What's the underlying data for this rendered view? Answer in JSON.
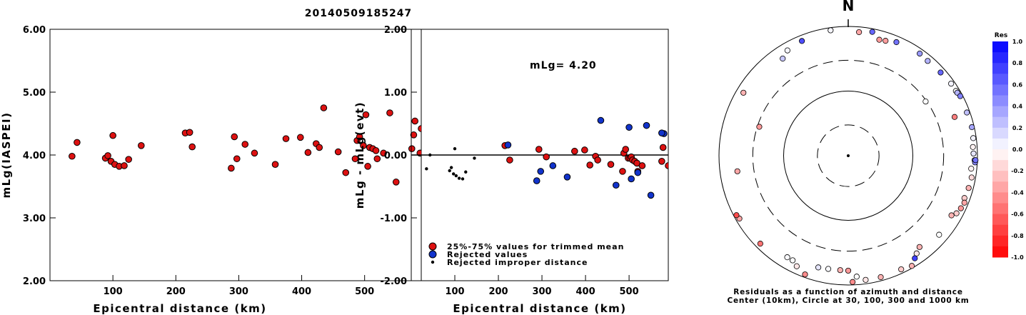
{
  "title": "20140509185247",
  "chart_data": [
    {
      "type": "scatter",
      "name": "mlg-vs-distance",
      "xlabel": "Epicentral distance (km)",
      "ylabel": "mLg(IASPEI)",
      "xlim": [
        0,
        590
      ],
      "ylim": [
        2.0,
        6.0
      ],
      "xticks": [
        "100",
        "200",
        "300",
        "400",
        "500"
      ],
      "yticks": [
        "2.00",
        "3.00",
        "4.00",
        "5.00",
        "6.00"
      ],
      "marker_color": "#dd1111",
      "points": [
        [
          35,
          3.98
        ],
        [
          43,
          4.2
        ],
        [
          88,
          3.95
        ],
        [
          92,
          3.99
        ],
        [
          97,
          3.9
        ],
        [
          100,
          4.31
        ],
        [
          103,
          3.85
        ],
        [
          110,
          3.82
        ],
        [
          118,
          3.83
        ],
        [
          125,
          3.93
        ],
        [
          145,
          4.15
        ],
        [
          215,
          4.35
        ],
        [
          222,
          4.36
        ],
        [
          226,
          4.13
        ],
        [
          288,
          3.79
        ],
        [
          293,
          4.29
        ],
        [
          297,
          3.94
        ],
        [
          310,
          4.17
        ],
        [
          325,
          4.03
        ],
        [
          358,
          3.85
        ],
        [
          375,
          4.26
        ],
        [
          398,
          4.28
        ],
        [
          410,
          4.04
        ],
        [
          423,
          4.18
        ],
        [
          428,
          4.12
        ],
        [
          435,
          4.75
        ],
        [
          458,
          4.05
        ],
        [
          470,
          3.72
        ],
        [
          485,
          3.94
        ],
        [
          488,
          4.23
        ],
        [
          492,
          4.29
        ],
        [
          498,
          4.15
        ],
        [
          502,
          4.64
        ],
        [
          505,
          3.82
        ],
        [
          508,
          4.12
        ],
        [
          513,
          4.1
        ],
        [
          518,
          4.07
        ],
        [
          520,
          3.94
        ],
        [
          530,
          4.03
        ],
        [
          540,
          4.67
        ],
        [
          550,
          3.57
        ],
        [
          575,
          4.1
        ],
        [
          578,
          4.32
        ],
        [
          580,
          4.54
        ],
        [
          588,
          4.03
        ],
        [
          590,
          4.42
        ]
      ]
    },
    {
      "type": "scatter",
      "name": "residual-vs-distance",
      "xlabel": "Epicentral distance (km)",
      "ylabel": "mLg - mLg(evt)",
      "xlim": [
        0,
        590
      ],
      "ylim": [
        -2.0,
        2.0
      ],
      "xticks": [
        "100",
        "200",
        "300",
        "400",
        "500"
      ],
      "yticks": [
        "-2.00",
        "-1.00",
        "0.00",
        "1.00",
        "2.00"
      ],
      "annotation": "mLg= 4.20",
      "reference_line": 0.0,
      "legend": [
        "25%-75% values for trimmed mean",
        "Rejected values",
        "Rejected improper distance"
      ],
      "legend_placement": "bottom-left",
      "series": [
        {
          "name": "25%-75% values for trimmed mean",
          "color": "#dd1111",
          "points": [
            [
              215,
              0.15
            ],
            [
              226,
              -0.08
            ],
            [
              293,
              0.09
            ],
            [
              310,
              -0.03
            ],
            [
              375,
              0.06
            ],
            [
              398,
              0.08
            ],
            [
              410,
              -0.16
            ],
            [
              423,
              -0.02
            ],
            [
              428,
              -0.08
            ],
            [
              458,
              -0.15
            ],
            [
              485,
              -0.26
            ],
            [
              488,
              0.03
            ],
            [
              492,
              0.09
            ],
            [
              498,
              -0.05
            ],
            [
              502,
              -0.05
            ],
            [
              505,
              -0.03
            ],
            [
              508,
              -0.08
            ],
            [
              513,
              -0.1
            ],
            [
              518,
              -0.13
            ],
            [
              520,
              -0.26
            ],
            [
              530,
              -0.17
            ],
            [
              575,
              -0.1
            ],
            [
              578,
              0.12
            ],
            [
              590,
              -0.17
            ]
          ]
        },
        {
          "name": "Rejected values",
          "color": "#1133cc",
          "points": [
            [
              222,
              0.16
            ],
            [
              288,
              -0.41
            ],
            [
              297,
              -0.26
            ],
            [
              325,
              -0.17
            ],
            [
              358,
              -0.35
            ],
            [
              435,
              0.55
            ],
            [
              470,
              -0.48
            ],
            [
              500,
              0.44
            ],
            [
              505,
              -0.38
            ],
            [
              520,
              -0.28
            ],
            [
              540,
              0.47
            ],
            [
              550,
              -0.64
            ],
            [
              580,
              0.34
            ],
            [
              575,
              0.35
            ]
          ]
        },
        {
          "name": "Rejected improper distance",
          "color": "#000000",
          "points": [
            [
              35,
              -0.22
            ],
            [
              43,
              0.0
            ],
            [
              88,
              -0.25
            ],
            [
              92,
              -0.2
            ],
            [
              97,
              -0.3
            ],
            [
              100,
              0.1
            ],
            [
              103,
              -0.33
            ],
            [
              110,
              -0.37
            ],
            [
              118,
              -0.38
            ],
            [
              125,
              -0.27
            ],
            [
              145,
              -0.05
            ]
          ]
        }
      ]
    },
    {
      "type": "scatter",
      "name": "azimuth-distance-residuals",
      "north_label": "N",
      "caption": [
        "Residuals as a function of azimuth and distance",
        "Center (10km), Circle at 30, 100, 300 and 1000 km"
      ],
      "colorbar_title": "Res",
      "colorbar_ticks": [
        "1.0",
        "0.8",
        "0.6",
        "0.4",
        "0.2",
        "0.0",
        "-0.2",
        "-0.4",
        "-0.6",
        "-0.8",
        "-1.0"
      ],
      "colorbar_range": [
        -1.0,
        1.0
      ],
      "rings_km": [
        30,
        100,
        300,
        1000
      ],
      "stations": [
        {
          "az": 352,
          "dist": 910,
          "res": 0.03
        },
        {
          "az": 23,
          "dist": 810,
          "res": 0.55
        },
        {
          "az": 11,
          "dist": 895,
          "res": 0.6
        },
        {
          "az": 5,
          "dist": 830,
          "res": -0.35
        },
        {
          "az": 15,
          "dist": 720,
          "res": -0.4
        },
        {
          "az": 18,
          "dist": 740,
          "res": -0.38
        },
        {
          "az": 338,
          "dist": 820,
          "res": 0.7
        },
        {
          "az": 330,
          "dist": 760,
          "res": 0.04
        },
        {
          "az": 326,
          "dist": 650,
          "res": 0.22
        },
        {
          "az": 35,
          "dist": 850,
          "res": 0.4
        },
        {
          "az": 40,
          "dist": 820,
          "res": 0.3
        },
        {
          "az": 48,
          "dist": 840,
          "res": 0.6
        },
        {
          "az": 55,
          "dist": 880,
          "res": 0.05
        },
        {
          "az": 59,
          "dist": 880,
          "res": 0.0
        },
        {
          "az": 60,
          "dist": 890,
          "res": 0.3
        },
        {
          "az": 62,
          "dist": 920,
          "res": 0.5
        },
        {
          "az": 70,
          "dist": 900,
          "res": 0.25
        },
        {
          "az": 77,
          "dist": 920,
          "res": 0.35
        },
        {
          "az": 82,
          "dist": 900,
          "res": 0.05
        },
        {
          "az": 86,
          "dist": 860,
          "res": -0.05
        },
        {
          "az": 89,
          "dist": 870,
          "res": 0.1
        },
        {
          "az": 92,
          "dist": 905,
          "res": 0.4
        },
        {
          "az": 93,
          "dist": 925,
          "res": 0.45
        },
        {
          "az": 92,
          "dist": 935,
          "res": 0.55
        },
        {
          "az": 96,
          "dist": 820,
          "res": -0.05
        },
        {
          "az": 100,
          "dist": 870,
          "res": -0.15
        },
        {
          "az": 105,
          "dist": 850,
          "res": -0.3
        },
        {
          "az": 110,
          "dist": 820,
          "res": -0.2
        },
        {
          "az": 112,
          "dist": 870,
          "res": -0.35
        },
        {
          "az": 115,
          "dist": 840,
          "res": -0.4
        },
        {
          "az": 118,
          "dist": 790,
          "res": -0.2
        },
        {
          "az": 120,
          "dist": 700,
          "res": -0.3
        },
        {
          "az": 131,
          "dist": 730,
          "res": 0.0
        },
        {
          "az": 145,
          "dist": 700,
          "res": -0.1
        },
        {
          "az": 147,
          "dist": 780,
          "res": 0.75
        },
        {
          "az": 150,
          "dist": 930,
          "res": -0.3
        },
        {
          "az": 155,
          "dist": 870,
          "res": -0.2
        },
        {
          "az": 165,
          "dist": 880,
          "res": -0.3
        },
        {
          "az": 172,
          "dist": 870,
          "res": -0.1
        },
        {
          "az": 178,
          "dist": 900,
          "res": -0.45
        },
        {
          "az": 176,
          "dist": 750,
          "res": 0.0
        },
        {
          "az": 180,
          "dist": 600,
          "res": -0.4
        },
        {
          "az": 184,
          "dist": 595,
          "res": -0.3
        },
        {
          "az": 190,
          "dist": 600,
          "res": 0.02
        },
        {
          "az": 195,
          "dist": 615,
          "res": 0.1
        },
        {
          "az": 200,
          "dist": 900,
          "res": -0.45
        },
        {
          "az": 205,
          "dist": 770,
          "res": -0.1
        },
        {
          "az": 208,
          "dist": 680,
          "res": 0.0
        },
        {
          "az": 211,
          "dist": 680,
          "res": 0.02
        },
        {
          "az": 225,
          "dist": 840,
          "res": -0.55
        },
        {
          "az": 240,
          "dist": 880,
          "res": -0.35
        },
        {
          "az": 242,
          "dist": 910,
          "res": -0.7
        },
        {
          "az": 262,
          "dist": 540,
          "res": -0.35
        },
        {
          "az": 288,
          "dist": 280,
          "res": -0.4
        },
        {
          "az": 301,
          "dist": 780,
          "res": -0.3
        },
        {
          "az": 55,
          "dist": 290,
          "res": 0.0
        },
        {
          "az": 70,
          "dist": 565,
          "res": -0.5
        },
        {
          "az": 142,
          "dist": 620,
          "res": -0.3
        }
      ]
    }
  ]
}
